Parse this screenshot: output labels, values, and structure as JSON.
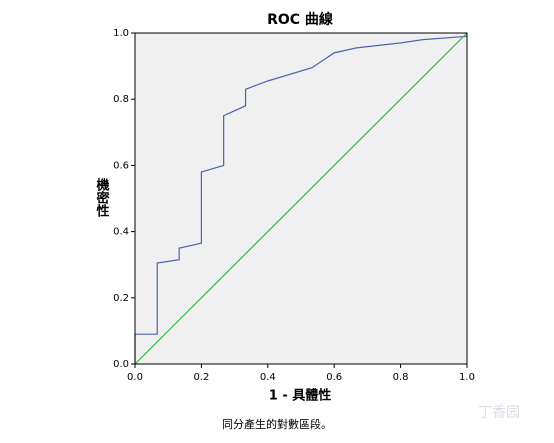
{
  "chart_data": {
    "type": "line",
    "title": "ROC 曲線",
    "x_label": "1 - 具體性",
    "y_label": "機密性",
    "note": "同分產生的對數區段。",
    "watermark": "丁香园",
    "xlim": [
      0,
      1
    ],
    "ylim": [
      0,
      1
    ],
    "xticks": [
      {
        "value": 0,
        "label": "0.0"
      },
      0.2,
      0.4,
      0.6,
      0.8,
      {
        "value": 1,
        "label": "1.0"
      }
    ],
    "yticks": [
      {
        "value": 0,
        "label": "0.0"
      },
      0.2,
      0.4,
      0.6,
      0.8,
      {
        "value": 1,
        "label": "1.0"
      }
    ],
    "background": "#f0f0f0",
    "series": [
      {
        "color": "#4a64ad",
        "x": [
          0,
          0,
          0.067,
          0.067,
          0.133,
          0.133,
          0.2,
          0.2,
          0.267,
          0.267,
          0.333,
          0.333,
          0.4,
          0.533,
          0.6,
          0.667,
          0.8,
          0.867,
          1
        ],
        "values": [
          0,
          0.09,
          0.09,
          0.305,
          0.315,
          0.35,
          0.365,
          0.58,
          0.6,
          0.75,
          0.78,
          0.83,
          0.855,
          0.895,
          0.94,
          0.955,
          0.97,
          0.98,
          0.99
        ]
      },
      {
        "color": "#2eb84a",
        "x": [
          0,
          1
        ],
        "values": [
          0,
          1
        ]
      }
    ]
  }
}
